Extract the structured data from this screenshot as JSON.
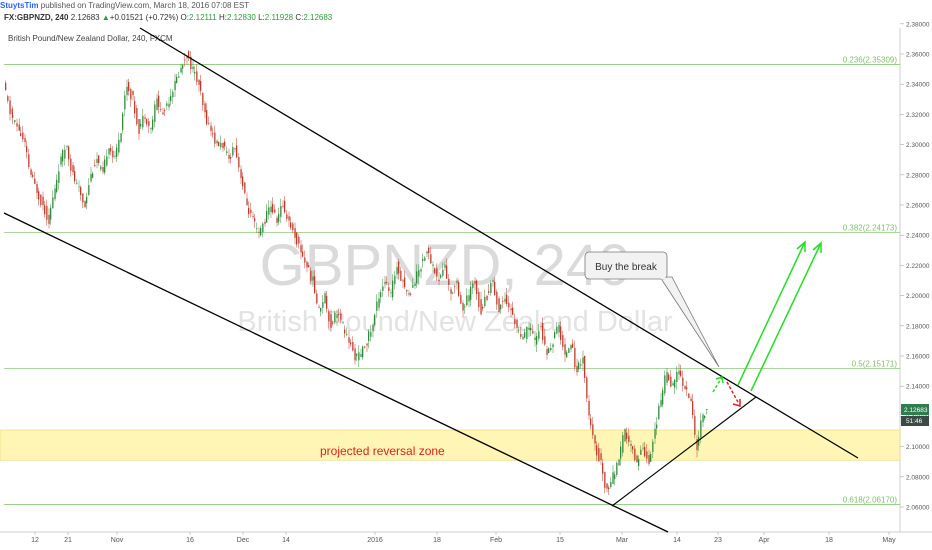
{
  "header": {
    "author": "StuytsTim",
    "published": "published on TradingView.com, March 18, 2016 07:08 EST"
  },
  "ohlc": {
    "symbol": "FX:GBPNZD, 240",
    "last": "2.12683",
    "change": "+0.01521 (+0.72%)",
    "o_label": "O:",
    "o": "2.12111",
    "h_label": "H:",
    "h": "2.12830",
    "l_label": "L:",
    "l": "2.11928",
    "c_label": "C:",
    "c": "2.12683"
  },
  "instrument_description": "British Pound/New Zealand Dollar, 240, FXCM",
  "watermark": {
    "line1": "GBPNZD, 240",
    "line2": "British Pound/New Zealand Dollar"
  },
  "annotations": {
    "callout": "Buy the break",
    "zone_label": "projected reversal zone"
  },
  "colors": {
    "up_candle": "#2e8b3a",
    "down_candle": "#c0392b",
    "fib_line": "#8cc97a",
    "zone_fill": "#fff3a8",
    "green_arrow": "#22dd22",
    "red_arrow": "#e02020",
    "trendline": "#000000",
    "price_tag": "#2e7d4f"
  },
  "chart_data": {
    "type": "candlestick",
    "title": "British Pound/New Zealand Dollar, 240, FXCM",
    "y_axis_ticks": [
      2.38,
      2.36,
      2.34,
      2.32,
      2.3,
      2.28,
      2.26,
      2.24,
      2.22,
      2.2,
      2.18,
      2.16,
      2.14,
      2.12,
      2.1,
      2.08,
      2.06
    ],
    "y_axis_labels": [
      "2.38000",
      "2.36000",
      "2.34000",
      "2.32000",
      "2.30000",
      "2.28000",
      "2.26000",
      "2.24000",
      "2.22000",
      "2.20000",
      "2.18000",
      "2.16000",
      "2.14000",
      "2.12683",
      "2.10000",
      "2.08000",
      "2.06000"
    ],
    "ylim": [
      2.05,
      2.38
    ],
    "x_axis_labels": [
      "12",
      "21",
      "Nov",
      "16",
      "Dec",
      "14",
      "2016",
      "18",
      "Feb",
      "15",
      "Mar",
      "14",
      "23",
      "Apr",
      "18",
      "May"
    ],
    "last_price": "2.12683",
    "price_tag_secondary": "51:46",
    "fib_levels": [
      {
        "label": "0.236(2.35309)",
        "value": 2.35309
      },
      {
        "label": "0.382(2.24173)",
        "value": 2.24173
      },
      {
        "label": "0.5(2.15171)",
        "value": 2.15171
      },
      {
        "label": "0.618(2.06170)",
        "value": 2.0617
      }
    ],
    "reversal_zone": [
      2.091,
      2.111
    ],
    "key_points": [
      {
        "date": "Nov 16 2015",
        "price": 2.362
      },
      {
        "date": "Feb 29 2016",
        "price": 2.063
      },
      {
        "date": "Mar 18 2016",
        "price": 2.12683
      }
    ]
  }
}
